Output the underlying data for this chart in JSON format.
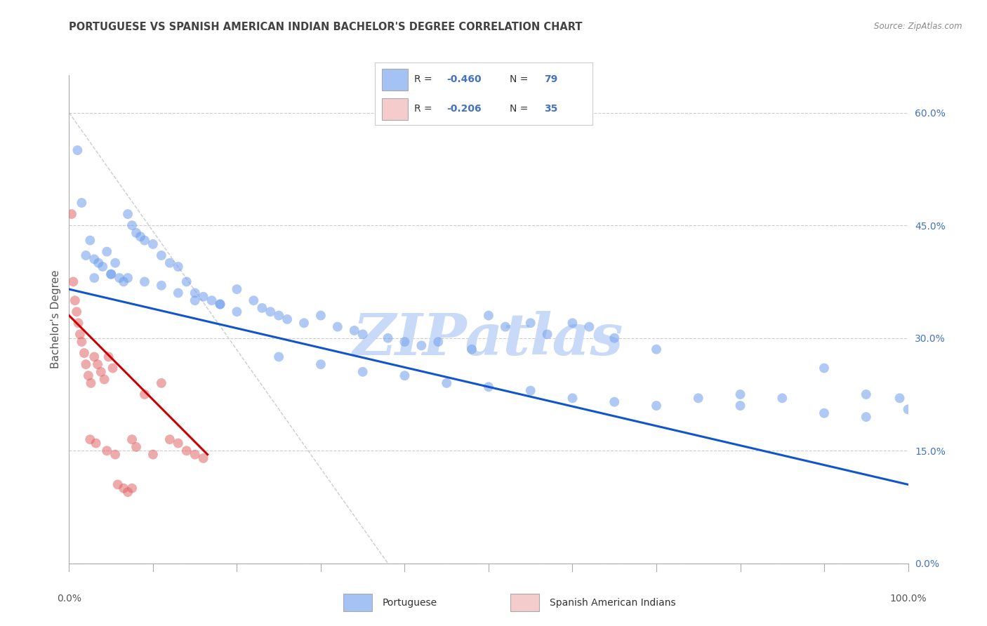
{
  "title": "PORTUGUESE VS SPANISH AMERICAN INDIAN BACHELOR'S DEGREE CORRELATION CHART",
  "source": "Source: ZipAtlas.com",
  "ylabel": "Bachelor's Degree",
  "watermark": "ZIPatlas",
  "blue_label": "Portuguese",
  "pink_label": "Spanish American Indians",
  "xlim": [
    0,
    100
  ],
  "ylim": [
    0,
    65
  ],
  "yticks": [
    0,
    15,
    30,
    45,
    60
  ],
  "ytick_labels": [
    "0.0%",
    "15.0%",
    "30.0%",
    "45.0%",
    "60.0%"
  ],
  "xtick_labels": [
    "0.0%",
    "100.0%"
  ],
  "blue_R": "-0.460",
  "blue_N": "79",
  "pink_R": "-0.206",
  "pink_N": "35",
  "blue_scatter_x": [
    1.0,
    1.5,
    2.0,
    2.5,
    3.0,
    3.5,
    4.0,
    4.5,
    5.0,
    5.5,
    6.0,
    6.5,
    7.0,
    7.5,
    8.0,
    8.5,
    9.0,
    10.0,
    11.0,
    12.0,
    13.0,
    14.0,
    15.0,
    16.0,
    17.0,
    18.0,
    20.0,
    22.0,
    23.0,
    24.0,
    25.0,
    26.0,
    28.0,
    30.0,
    32.0,
    34.0,
    35.0,
    38.0,
    40.0,
    42.0,
    44.0,
    48.0,
    50.0,
    52.0,
    55.0,
    57.0,
    60.0,
    62.0,
    65.0,
    70.0,
    75.0,
    80.0,
    85.0,
    90.0,
    95.0,
    99.0,
    3.0,
    5.0,
    7.0,
    9.0,
    11.0,
    13.0,
    15.0,
    18.0,
    20.0,
    25.0,
    30.0,
    35.0,
    40.0,
    45.0,
    50.0,
    55.0,
    60.0,
    65.0,
    70.0,
    80.0,
    90.0,
    95.0,
    100.0
  ],
  "blue_scatter_y": [
    55.0,
    48.0,
    41.0,
    43.0,
    40.5,
    40.0,
    39.5,
    41.5,
    38.5,
    40.0,
    38.0,
    37.5,
    46.5,
    45.0,
    44.0,
    43.5,
    43.0,
    42.5,
    41.0,
    40.0,
    39.5,
    37.5,
    36.0,
    35.5,
    35.0,
    34.5,
    36.5,
    35.0,
    34.0,
    33.5,
    33.0,
    32.5,
    32.0,
    33.0,
    31.5,
    31.0,
    30.5,
    30.0,
    29.5,
    29.0,
    29.5,
    28.5,
    33.0,
    31.5,
    32.0,
    30.5,
    32.0,
    31.5,
    30.0,
    28.5,
    22.0,
    22.5,
    22.0,
    26.0,
    22.5,
    22.0,
    38.0,
    38.5,
    38.0,
    37.5,
    37.0,
    36.0,
    35.0,
    34.5,
    33.5,
    27.5,
    26.5,
    25.5,
    25.0,
    24.0,
    23.5,
    23.0,
    22.0,
    21.5,
    21.0,
    21.0,
    20.0,
    19.5,
    20.5
  ],
  "pink_scatter_x": [
    0.3,
    0.5,
    0.7,
    0.9,
    1.1,
    1.3,
    1.5,
    1.8,
    2.0,
    2.3,
    2.6,
    3.0,
    3.4,
    3.8,
    4.2,
    4.7,
    5.2,
    5.8,
    6.5,
    7.0,
    7.5,
    8.0,
    9.0,
    10.0,
    11.0,
    12.0,
    13.0,
    14.0,
    15.0,
    16.0,
    2.5,
    3.2,
    4.5,
    5.5,
    7.5
  ],
  "pink_scatter_y": [
    46.5,
    37.5,
    35.0,
    33.5,
    32.0,
    30.5,
    29.5,
    28.0,
    26.5,
    25.0,
    24.0,
    27.5,
    26.5,
    25.5,
    24.5,
    27.5,
    26.0,
    10.5,
    10.0,
    9.5,
    16.5,
    15.5,
    22.5,
    14.5,
    24.0,
    16.5,
    16.0,
    15.0,
    14.5,
    14.0,
    16.5,
    16.0,
    15.0,
    14.5,
    10.0
  ],
  "blue_line_x": [
    0,
    100
  ],
  "blue_line_y": [
    36.5,
    10.5
  ],
  "pink_line_x": [
    0.0,
    16.5
  ],
  "pink_line_y": [
    33.0,
    14.5
  ],
  "diag_line_x": [
    0,
    38
  ],
  "diag_line_y": [
    60,
    0
  ],
  "blue_color": "#a4c2f4",
  "pink_color": "#f4cccc",
  "blue_dot_color": "#6d9eeb",
  "pink_dot_color": "#e06666",
  "blue_line_color": "#1155cc",
  "pink_line_color": "#cc0000",
  "grid_color": "#cccccc",
  "legend_text_color": "#4472c4",
  "title_color": "#434343",
  "right_axis_color": "#4472c4",
  "watermark_color": "#c9daf8"
}
